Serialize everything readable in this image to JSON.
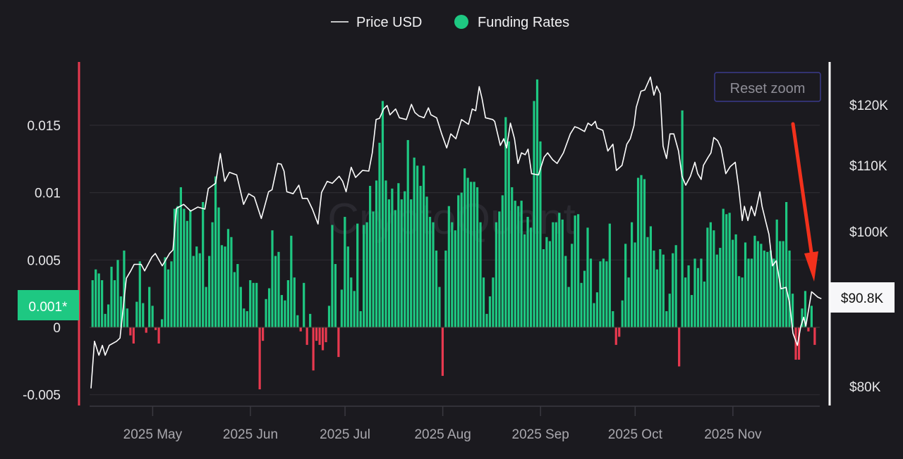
{
  "legend": {
    "price_label": "Price USD",
    "funding_label": "Funding Rates"
  },
  "reset_zoom_label": "Reset zoom",
  "watermark": "CryptoQuant",
  "colors": {
    "background": "#1b1a1f",
    "positive": "#1ec882",
    "negative": "#e8394f",
    "price_line": "#ffffff",
    "left_axis": "#e8394f",
    "arrow": "#f2311c"
  },
  "chart_data": {
    "type": "bar+line",
    "title": "",
    "x_unit": "days from first bar",
    "x_ticks": [
      {
        "label": "2025 May",
        "day": 20
      },
      {
        "label": "2025 Jun",
        "day": 51
      },
      {
        "label": "2025 Jul",
        "day": 81
      },
      {
        "label": "2025 Aug",
        "day": 112
      },
      {
        "label": "2025 Sep",
        "day": 143
      },
      {
        "label": "2025 Oct",
        "day": 173
      },
      {
        "label": "2025 Nov",
        "day": 204
      }
    ],
    "left_axis": {
      "label": "Funding Rates",
      "ticks": [
        {
          "label": "0.015",
          "value": 0.015
        },
        {
          "label": "0.01",
          "value": 0.01
        },
        {
          "label": "0.005",
          "value": 0.005
        },
        {
          "label": "0",
          "value": 0
        },
        {
          "label": "-0.005",
          "value": -0.005
        }
      ],
      "ylim": [
        -0.0058,
        0.0195
      ],
      "current_label": "0.001*"
    },
    "right_axis": {
      "label": "Price USD",
      "scale": "log",
      "ticks": [
        {
          "label": "$120K",
          "value": 120000
        },
        {
          "label": "$110K",
          "value": 110000
        },
        {
          "label": "$100K",
          "value": 100000
        },
        {
          "label": "$80K",
          "value": 80000
        }
      ],
      "current_label": "$90.8K"
    },
    "series": [
      {
        "name": "Funding Rates",
        "type": "bar",
        "values": [
          0.0035,
          0.0043,
          0.004,
          0.0035,
          0.001,
          0.0017,
          0.0045,
          0.0035,
          0.005,
          0.0023,
          0.0057,
          0.0014,
          -0.0006,
          -0.0012,
          0.0019,
          0.0049,
          0.0018,
          -0.0004,
          0.003,
          0.0016,
          -0.0002,
          -0.0012,
          0.0006,
          0.0052,
          0.0043,
          0.0049,
          0.0088,
          0.009,
          0.0104,
          0.0088,
          0.0079,
          0.0087,
          0.0053,
          0.006,
          0.0055,
          0.0093,
          0.003,
          0.0053,
          0.0078,
          0.0112,
          0.0089,
          0.0061,
          0.006,
          0.0073,
          0.0067,
          0.0041,
          0.0047,
          0.003,
          0.0014,
          0.0012,
          0.0035,
          0.0033,
          0.0033,
          -0.0046,
          -0.001,
          0.0021,
          0.0029,
          0.0072,
          0.0053,
          0.0056,
          0.0024,
          0.002,
          0.0035,
          0.0068,
          0.0037,
          0.0009,
          -0.0003,
          0.0033,
          -0.0013,
          0.001,
          -0.0032,
          -0.001,
          -0.0013,
          -0.0017,
          -0.0011,
          0.0016,
          0.0076,
          0.0047,
          -0.0022,
          0.0028,
          0.0082,
          0.006,
          0.0037,
          0.0027,
          0.0077,
          0.0012,
          0.0076,
          0.0078,
          0.0105,
          0.0086,
          0.0109,
          0.0137,
          0.0168,
          0.0109,
          0.0095,
          0.0103,
          0.0087,
          0.0107,
          0.0095,
          0.0101,
          0.0139,
          0.0095,
          0.0126,
          0.012,
          0.0105,
          0.012,
          0.0097,
          0.0082,
          0.0078,
          0.0057,
          0.003,
          -0.0036,
          0.0057,
          0.009,
          0.0078,
          0.0072,
          0.0098,
          0.01,
          0.0118,
          0.0111,
          0.0108,
          0.0108,
          0.0104,
          0.0078,
          0.0037,
          0.001,
          0.0023,
          0.0037,
          0.0078,
          0.0086,
          0.0098,
          0.0156,
          0.0138,
          0.0104,
          0.0094,
          0.009,
          0.0094,
          0.0069,
          0.0082,
          0.0074,
          0.0168,
          0.0184,
          0.0138,
          0.0058,
          0.0067,
          0.0064,
          0.0078,
          0.0078,
          0.0085,
          0.008,
          0.0053,
          0.003,
          0.0062,
          0.0083,
          0.0084,
          0.0033,
          0.0042,
          0.0074,
          0.0051,
          0.0018,
          0.0026,
          0.0049,
          0.0051,
          0.0049,
          0.0077,
          0.0012,
          -0.0013,
          -0.0007,
          0.002,
          0.0062,
          0.0037,
          0.0078,
          0.0063,
          0.0111,
          0.0113,
          0.011,
          0.0067,
          0.0075,
          0.0057,
          0.0043,
          0.0058,
          0.0054,
          0.0012,
          0.0025,
          0.0055,
          0.0061,
          -0.0029,
          0.0161,
          0.0037,
          0.0046,
          0.0024,
          0.0051,
          0.0044,
          0.0051,
          0.0034,
          0.0074,
          0.0078,
          0.0072,
          0.0054,
          0.0059,
          0.0088,
          0.0084,
          0.0085,
          0.0065,
          0.0069,
          0.0038,
          0.0037,
          0.0063,
          0.0051,
          0.0051,
          0.0068,
          0.0064,
          0.0062,
          0.0057,
          0.0056,
          0.0057,
          0.0051,
          0.008,
          0.0064,
          0.0064,
          0.0093,
          0.0057,
          0.0025,
          -0.0024,
          -0.0024,
          0.0014,
          0.0027,
          -0.0003,
          0.0016,
          -0.0013
        ]
      },
      {
        "name": "Price USD",
        "type": "line",
        "points": [
          [
            0,
            79800
          ],
          [
            1.1,
            85400
          ],
          [
            2.5,
            83700
          ],
          [
            3.6,
            84900
          ],
          [
            4.5,
            83700
          ],
          [
            5.8,
            84900
          ],
          [
            8.1,
            85400
          ],
          [
            9.2,
            85800
          ],
          [
            11.2,
            93500
          ],
          [
            12.6,
            94500
          ],
          [
            13.7,
            95400
          ],
          [
            15.9,
            95400
          ],
          [
            17,
            94500
          ],
          [
            19.3,
            96400
          ],
          [
            20.4,
            96900
          ],
          [
            22.6,
            95200
          ],
          [
            24.9,
            96900
          ],
          [
            26,
            97400
          ],
          [
            27.1,
            103400
          ],
          [
            29.4,
            104000
          ],
          [
            31.6,
            103000
          ],
          [
            33.9,
            103600
          ],
          [
            36.1,
            103300
          ],
          [
            37.2,
            106400
          ],
          [
            39.5,
            107200
          ],
          [
            41,
            111900
          ],
          [
            42.4,
            107500
          ],
          [
            43.9,
            108900
          ],
          [
            46.2,
            108500
          ],
          [
            48.4,
            104000
          ],
          [
            50,
            105600
          ],
          [
            51.8,
            105100
          ],
          [
            54,
            101900
          ],
          [
            56.3,
            105900
          ],
          [
            57.4,
            106200
          ],
          [
            59.2,
            110300
          ],
          [
            60.3,
            110200
          ],
          [
            61.2,
            109100
          ],
          [
            62.1,
            105900
          ],
          [
            64.1,
            105600
          ],
          [
            65.9,
            106900
          ],
          [
            67,
            104900
          ],
          [
            68.6,
            104900
          ],
          [
            70.2,
            103300
          ],
          [
            72,
            101100
          ],
          [
            73.1,
            105800
          ],
          [
            74.9,
            107500
          ],
          [
            76.5,
            107200
          ],
          [
            78.7,
            108300
          ],
          [
            79.8,
            107500
          ],
          [
            80.9,
            105900
          ],
          [
            82.5,
            109700
          ],
          [
            83.9,
            108100
          ],
          [
            86.1,
            109200
          ],
          [
            88.1,
            109100
          ],
          [
            89.2,
            112000
          ],
          [
            90.4,
            117500
          ],
          [
            91.5,
            117700
          ],
          [
            92.8,
            119300
          ],
          [
            93.9,
            119900
          ],
          [
            94.8,
            118300
          ],
          [
            96.6,
            119300
          ],
          [
            97.8,
            117800
          ],
          [
            100,
            117500
          ],
          [
            101.6,
            120100
          ],
          [
            102.7,
            118700
          ],
          [
            104,
            118100
          ],
          [
            105.6,
            117800
          ],
          [
            107,
            119500
          ],
          [
            107.8,
            118300
          ],
          [
            109.6,
            117800
          ],
          [
            111.2,
            115100
          ],
          [
            112.8,
            112800
          ],
          [
            114.1,
            115100
          ],
          [
            115.7,
            114300
          ],
          [
            117.5,
            117500
          ],
          [
            119.7,
            116700
          ],
          [
            120.9,
            119300
          ],
          [
            122,
            119000
          ],
          [
            123.1,
            123200
          ],
          [
            124,
            121100
          ],
          [
            125.1,
            117800
          ],
          [
            127.4,
            117500
          ],
          [
            128,
            117200
          ],
          [
            129.8,
            113200
          ],
          [
            130.9,
            114300
          ],
          [
            131.8,
            112800
          ],
          [
            133,
            116900
          ],
          [
            134.3,
            114300
          ],
          [
            135.4,
            110300
          ],
          [
            136.5,
            112000
          ],
          [
            137.7,
            111700
          ],
          [
            138.6,
            112600
          ],
          [
            139.7,
            108700
          ],
          [
            141.9,
            108500
          ],
          [
            143.7,
            111300
          ],
          [
            144.8,
            112000
          ],
          [
            146.4,
            110900
          ],
          [
            147.8,
            110300
          ],
          [
            149.8,
            112000
          ],
          [
            152,
            115100
          ],
          [
            153.4,
            116300
          ],
          [
            154.5,
            116100
          ],
          [
            156.5,
            115500
          ],
          [
            157.6,
            116900
          ],
          [
            158.7,
            116500
          ],
          [
            159.9,
            117200
          ],
          [
            160.5,
            116100
          ],
          [
            162.3,
            115700
          ],
          [
            163.9,
            112300
          ],
          [
            165.5,
            113400
          ],
          [
            166.6,
            109200
          ],
          [
            168.4,
            110000
          ],
          [
            169.9,
            113400
          ],
          [
            171,
            114300
          ],
          [
            172.2,
            116500
          ],
          [
            172.9,
            119600
          ],
          [
            174.4,
            122400
          ],
          [
            175.6,
            122600
          ],
          [
            177.4,
            124900
          ],
          [
            178.5,
            121700
          ],
          [
            179.4,
            123300
          ],
          [
            180.5,
            122000
          ],
          [
            181.4,
            113100
          ],
          [
            182.5,
            111100
          ],
          [
            183.6,
            115100
          ],
          [
            184.8,
            115100
          ],
          [
            186.3,
            112300
          ],
          [
            187.4,
            108300
          ],
          [
            188.6,
            106900
          ],
          [
            190.1,
            108300
          ],
          [
            191.5,
            110500
          ],
          [
            192.4,
            108700
          ],
          [
            193.5,
            107800
          ],
          [
            194.2,
            110000
          ],
          [
            195.7,
            111300
          ],
          [
            196.6,
            112000
          ],
          [
            197.5,
            114500
          ],
          [
            198.7,
            114000
          ],
          [
            199.8,
            112800
          ],
          [
            201.3,
            108700
          ],
          [
            202.7,
            109800
          ],
          [
            204.3,
            110500
          ],
          [
            205.4,
            106500
          ],
          [
            206.5,
            101600
          ],
          [
            207.2,
            103700
          ],
          [
            208.3,
            101600
          ],
          [
            209.4,
            103700
          ],
          [
            210.5,
            102300
          ],
          [
            212.1,
            105900
          ],
          [
            212.8,
            103700
          ],
          [
            213.9,
            101600
          ],
          [
            215,
            99600
          ],
          [
            216.1,
            95200
          ],
          [
            217.3,
            95900
          ],
          [
            218.8,
            92100
          ],
          [
            220.4,
            92300
          ],
          [
            221.5,
            90300
          ],
          [
            222.6,
            86400
          ],
          [
            224,
            84900
          ],
          [
            225.1,
            87300
          ],
          [
            226,
            88400
          ],
          [
            226.7,
            87300
          ],
          [
            228.5,
            91700
          ],
          [
            229.4,
            91400
          ],
          [
            230.5,
            91000
          ],
          [
            231.6,
            90800
          ]
        ]
      }
    ],
    "grid": true,
    "legend_position": "top-center"
  }
}
